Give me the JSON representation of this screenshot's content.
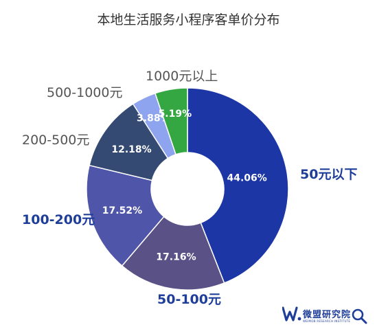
{
  "chart_data": {
    "type": "pie",
    "title": "本地生活服务小程序客单价分布",
    "categories": [
      "50元以下",
      "50-100元",
      "100-200元",
      "200-500元",
      "500-1000元",
      "1000元以上"
    ],
    "values": [
      44.06,
      17.16,
      17.52,
      12.18,
      3.88,
      5.19
    ],
    "value_labels": [
      "44.06%",
      "17.16%",
      "17.52%",
      "12.18%",
      "3.88%",
      "5.19%"
    ],
    "colors": [
      "#1c36a6",
      "#5a5186",
      "#4f55a8",
      "#344a72",
      "#8ea4ef",
      "#34a642"
    ],
    "label_colors": [
      "#1f3e99",
      "#1f3e99",
      "#1f3e99",
      "#555555",
      "#555555",
      "#555555"
    ],
    "donut": true,
    "legend": "none"
  },
  "watermark": {
    "name": "微盟研究院",
    "subtitle": "WEIMOB RESEARCH INSTITUTE",
    "brand_color": "#1f3e99"
  }
}
